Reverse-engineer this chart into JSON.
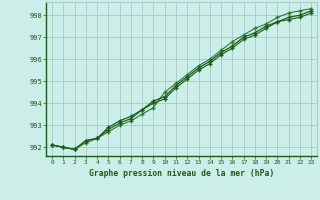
{
  "title": "Graphe pression niveau de la mer (hPa)",
  "background_color": "#cceee8",
  "grid_color": "#aacccc",
  "line_color_dark": "#1a5c1a",
  "line_color_light": "#2d7a2d",
  "xlim": [
    -0.5,
    23.5
  ],
  "ylim": [
    991.6,
    998.6
  ],
  "yticks": [
    992,
    993,
    994,
    995,
    996,
    997,
    998
  ],
  "xticks": [
    0,
    1,
    2,
    3,
    4,
    5,
    6,
    7,
    8,
    9,
    10,
    11,
    12,
    13,
    14,
    15,
    16,
    17,
    18,
    19,
    20,
    21,
    22,
    23
  ],
  "hours": [
    0,
    1,
    2,
    3,
    4,
    5,
    6,
    7,
    8,
    9,
    10,
    11,
    12,
    13,
    14,
    15,
    16,
    17,
    18,
    19,
    20,
    21,
    22,
    23
  ],
  "line1": [
    992.1,
    992.0,
    991.9,
    992.3,
    992.4,
    992.9,
    993.2,
    993.4,
    993.7,
    994.1,
    994.3,
    994.8,
    995.2,
    995.6,
    995.9,
    996.3,
    996.6,
    997.0,
    997.2,
    997.5,
    997.7,
    997.9,
    998.0,
    998.2
  ],
  "line2": [
    992.1,
    992.0,
    991.9,
    992.2,
    992.4,
    992.7,
    993.0,
    993.2,
    993.5,
    993.8,
    994.5,
    994.9,
    995.3,
    995.7,
    996.0,
    996.4,
    996.8,
    997.1,
    997.4,
    997.6,
    997.9,
    998.1,
    998.2,
    998.3
  ],
  "line3": [
    992.1,
    992.0,
    991.9,
    992.3,
    992.4,
    992.8,
    993.1,
    993.3,
    993.7,
    994.0,
    994.2,
    994.7,
    995.1,
    995.5,
    995.8,
    996.2,
    996.5,
    996.9,
    997.1,
    997.4,
    997.7,
    997.8,
    997.9,
    998.1
  ]
}
